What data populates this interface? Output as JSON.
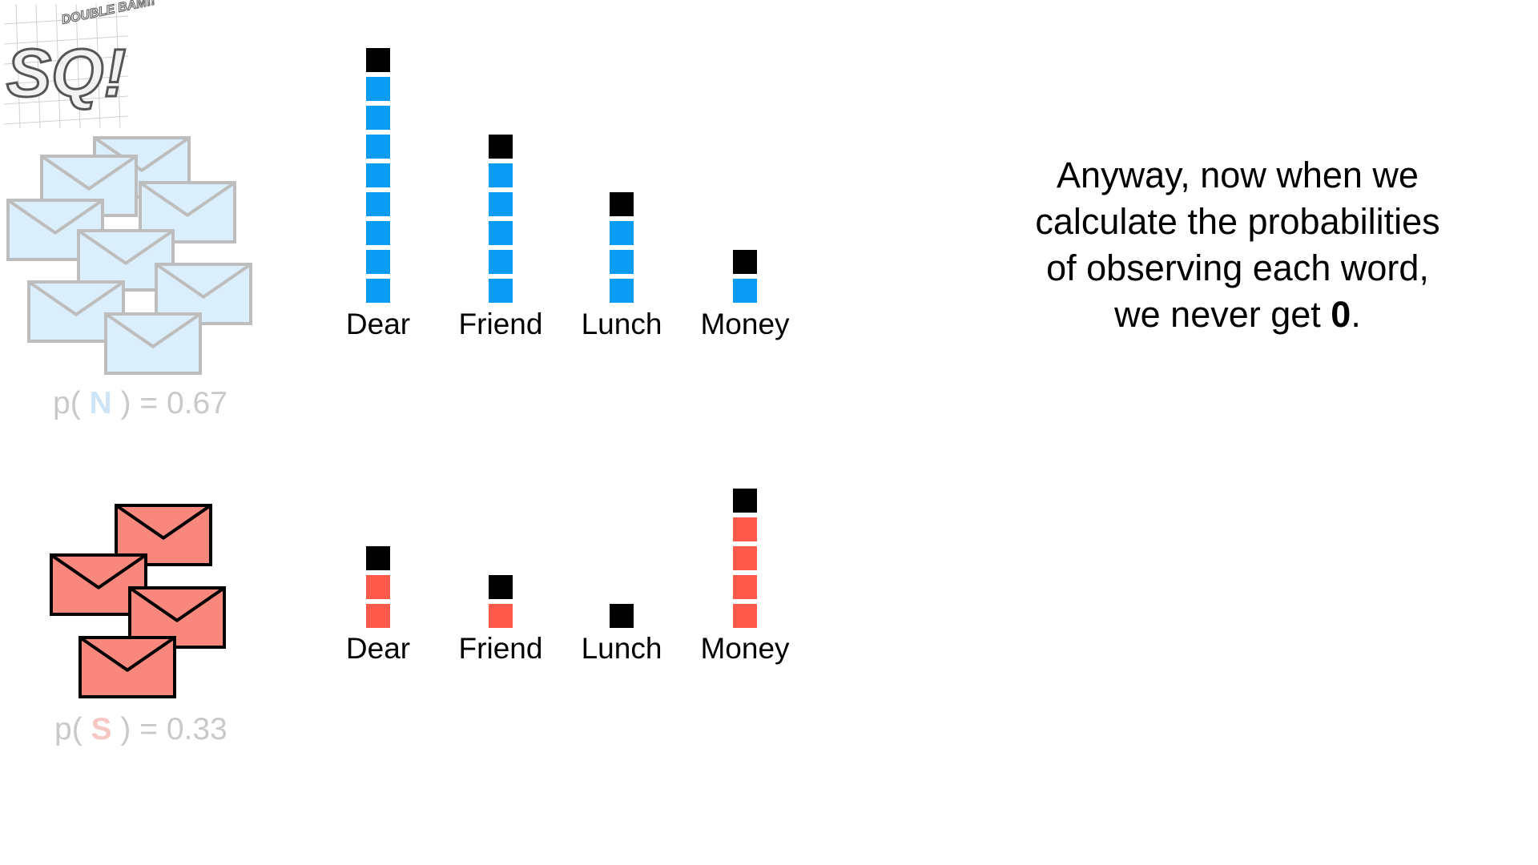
{
  "logo": {
    "main": "SQ!",
    "tag": "DOUBLE BAM!!"
  },
  "normal": {
    "prob_prefix": "p(",
    "class_letter": "N",
    "prob_suffix": ") = 0.67",
    "envelope_color": "#dbeefc",
    "box_color": "#0a9cf5"
  },
  "spam": {
    "prob_prefix": "p(",
    "class_letter": "S",
    "prob_suffix": ") = 0.33",
    "envelope_color": "#f8877e",
    "box_color": "#fe5a4b"
  },
  "pseudo_count_color": "#000000",
  "caption": {
    "line1": "Anyway, now when we",
    "line2": "calculate the probabilities",
    "line3": "of observing each word,",
    "line4_prefix": "we never get ",
    "line4_bold": "0",
    "line4_suffix": "."
  },
  "chart_data": [
    {
      "type": "bar",
      "categories": [
        "Dear",
        "Friend",
        "Lunch",
        "Money"
      ],
      "series": [
        {
          "values": [
            8,
            5,
            3,
            1
          ]
        },
        {
          "values": [
            1,
            1,
            1,
            1
          ]
        }
      ]
    },
    {
      "type": "bar",
      "categories": [
        "Dear",
        "Friend",
        "Lunch",
        "Money"
      ],
      "series": [
        {
          "values": [
            2,
            1,
            0,
            4
          ]
        },
        {
          "values": [
            1,
            1,
            1,
            1
          ]
        }
      ]
    }
  ]
}
